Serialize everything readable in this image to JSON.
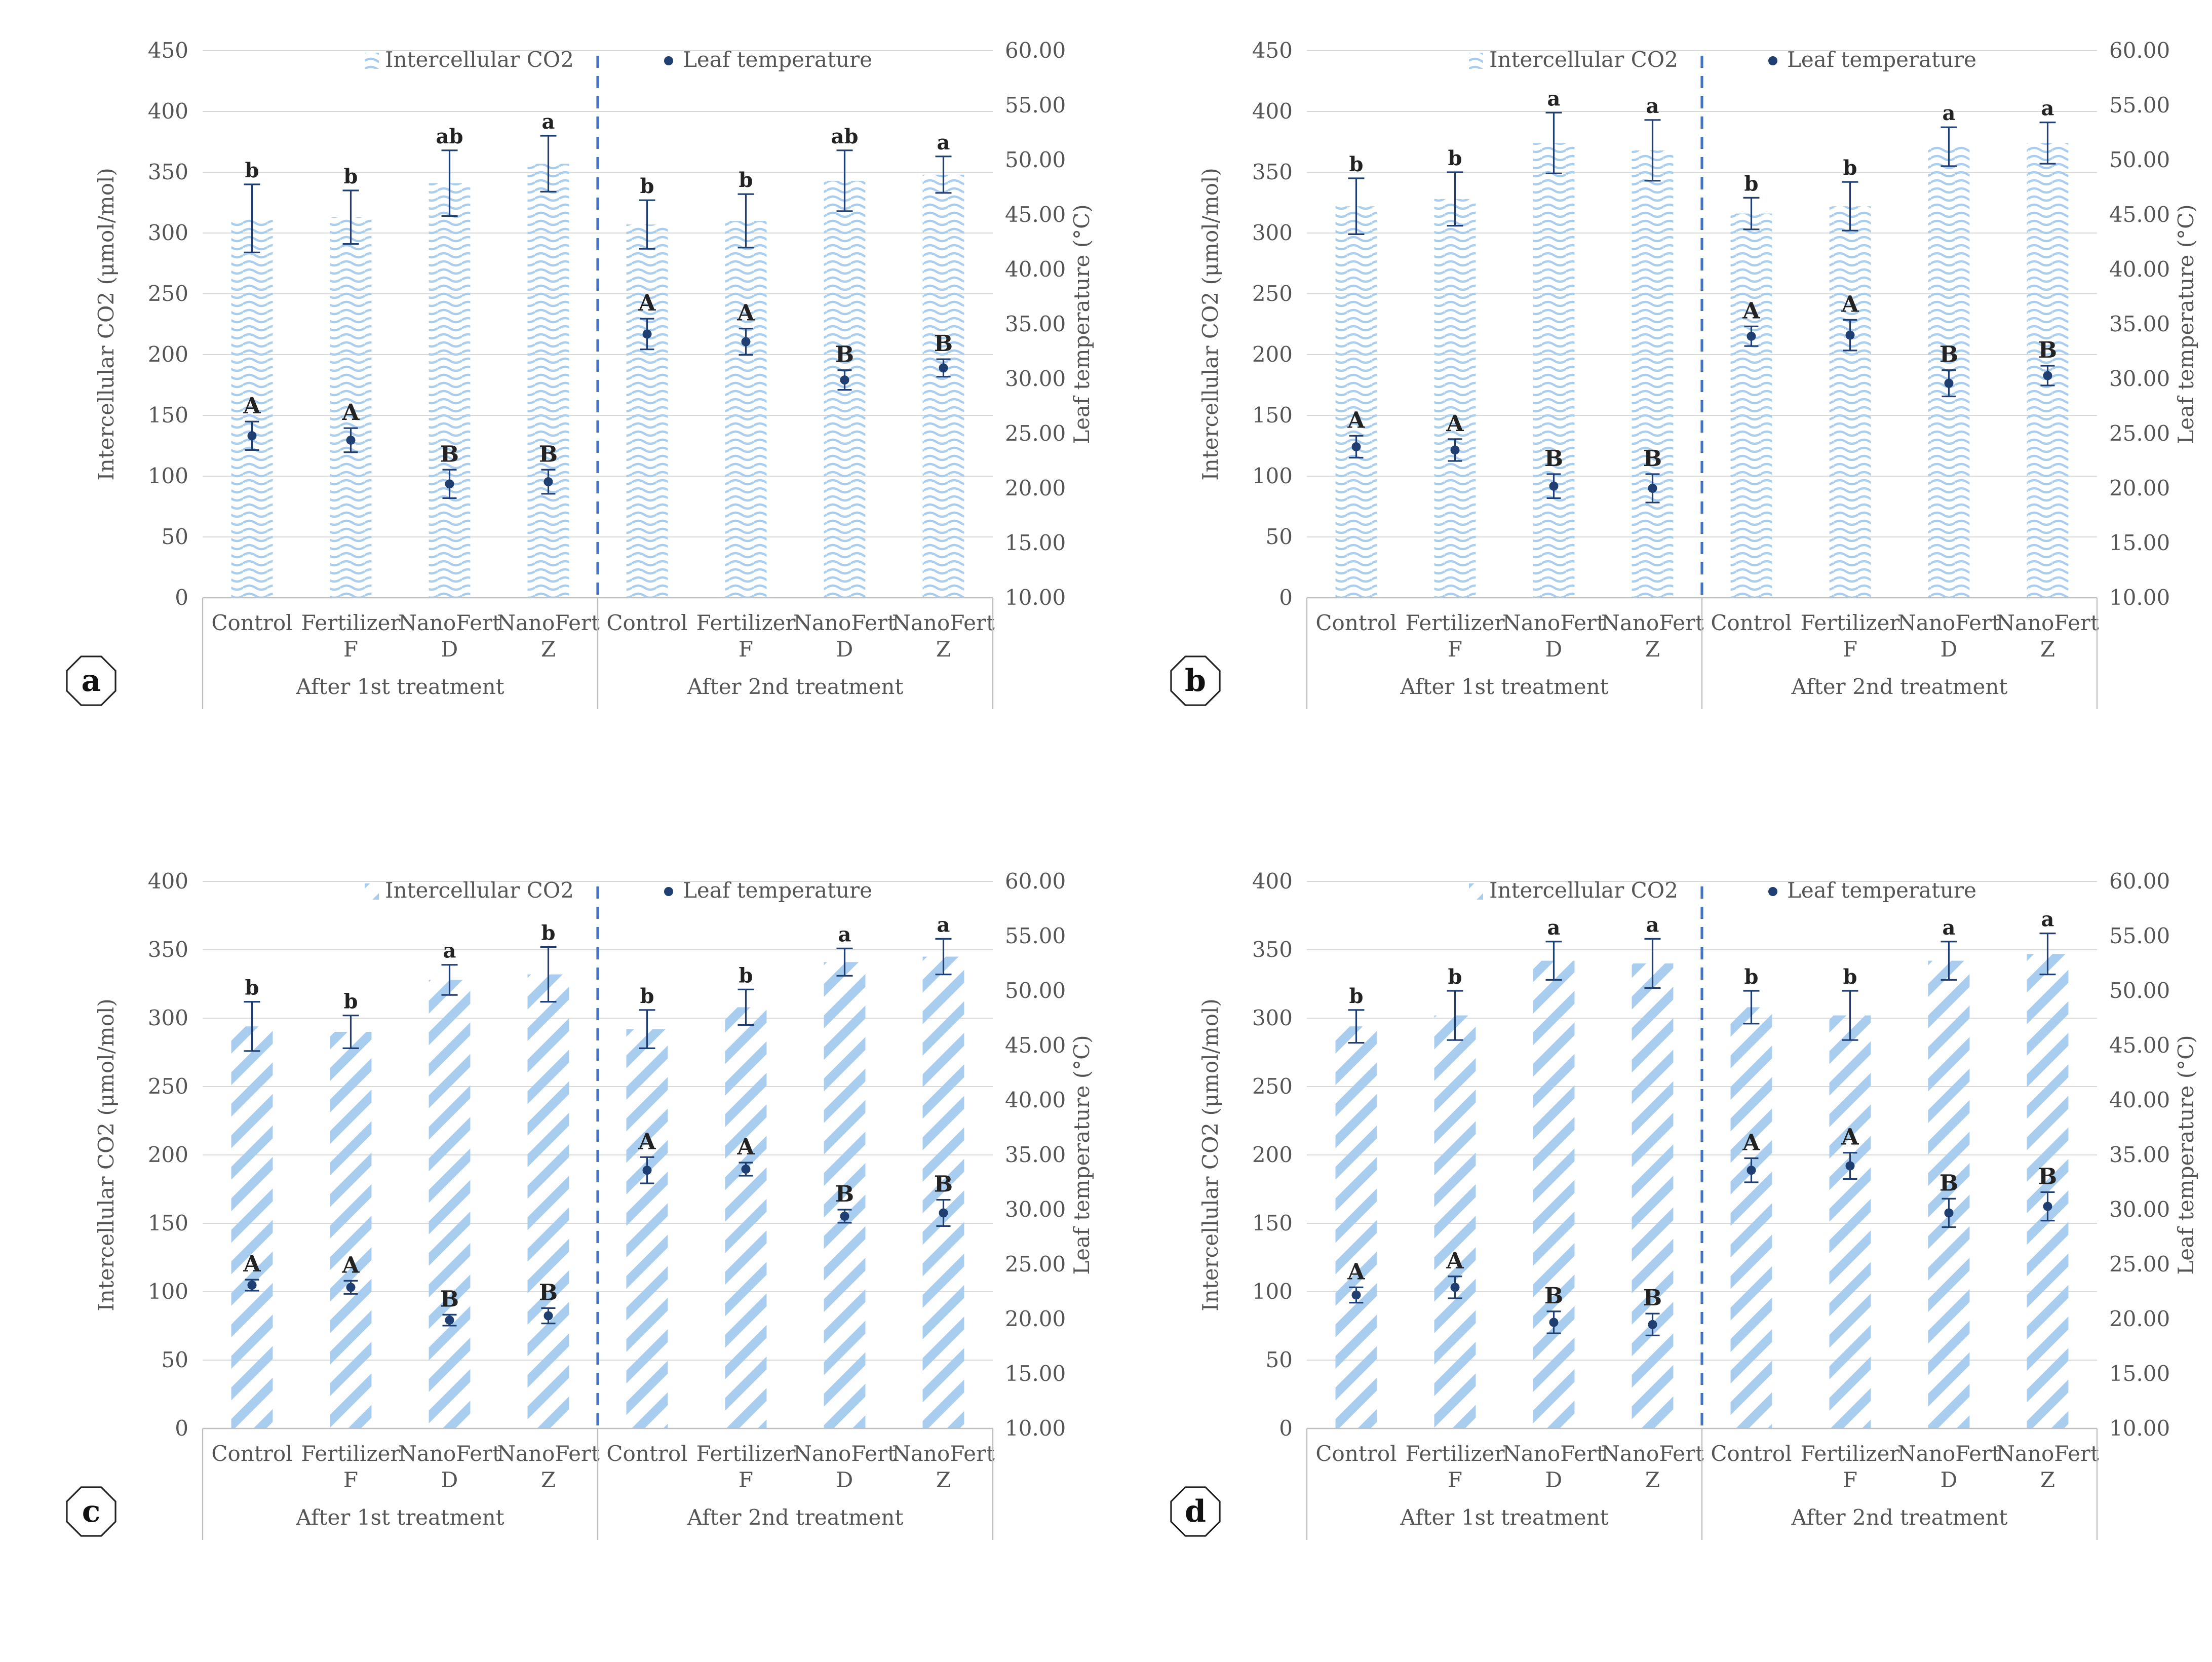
{
  "chart_data": [
    {
      "type": "bar",
      "panel_label": "a",
      "bar_pattern": "wavy",
      "groups": [
        "After 1st treatment",
        "After 2nd treatment"
      ],
      "categories": [
        [
          "Control",
          ""
        ],
        [
          "Fertilizer",
          "F"
        ],
        [
          "NanoFert",
          "D"
        ],
        [
          "NanoFert",
          "Z"
        ],
        [
          "Control",
          ""
        ],
        [
          "Fertilizer",
          "F"
        ],
        [
          "NanoFert",
          "D"
        ],
        [
          "NanoFert",
          "Z"
        ]
      ],
      "ylabel": "Intercellular CO2 (μmol/mol)",
      "y2label": "Leaf temperature (°C)",
      "ylim": [
        0,
        450
      ],
      "y2lim": [
        10,
        60
      ],
      "yticks": [
        "0",
        "50",
        "100",
        "150",
        "200",
        "250",
        "300",
        "350",
        "400",
        "450"
      ],
      "y2ticks": [
        "10.00",
        "15.00",
        "20.00",
        "25.00",
        "30.00",
        "35.00",
        "40.00",
        "45.00",
        "50.00",
        "55.00",
        "60.00"
      ],
      "legend": {
        "bar": "Intercellular CO2",
        "point": "Leaf temperature"
      },
      "series": [
        {
          "name": "Intercellular CO2",
          "values": [
            312,
            313,
            341,
            357,
            307,
            310,
            343,
            348
          ],
          "err": [
            28,
            22,
            27,
            23,
            20,
            22,
            25,
            15
          ],
          "letters": [
            "b",
            "b",
            "ab",
            "a",
            "b",
            "b",
            "ab",
            "a"
          ]
        },
        {
          "name": "Leaf temperature",
          "values": [
            24.8,
            24.4,
            20.4,
            20.6,
            34.1,
            33.4,
            29.9,
            31.0
          ],
          "err": [
            1.3,
            1.1,
            1.3,
            1.1,
            1.4,
            1.2,
            0.9,
            0.8
          ],
          "letters": [
            "A",
            "A",
            "B",
            "B",
            "A",
            "A",
            "B",
            "B"
          ]
        }
      ],
      "grid": true
    },
    {
      "type": "bar",
      "panel_label": "b",
      "bar_pattern": "wavy",
      "groups": [
        "After 1st treatment",
        "After 2nd treatment"
      ],
      "categories": [
        [
          "Control",
          ""
        ],
        [
          "Fertilizer",
          "F"
        ],
        [
          "NanoFert",
          "D"
        ],
        [
          "NanoFert",
          "Z"
        ],
        [
          "Control",
          ""
        ],
        [
          "Fertilizer",
          "F"
        ],
        [
          "NanoFert",
          "D"
        ],
        [
          "NanoFert",
          "Z"
        ]
      ],
      "ylabel": "Intercellular CO2 (μmol/mol)",
      "y2label": "Leaf temperature (°C)",
      "ylim": [
        0,
        450
      ],
      "y2lim": [
        10,
        60
      ],
      "yticks": [
        "0",
        "50",
        "100",
        "150",
        "200",
        "250",
        "300",
        "350",
        "400",
        "450"
      ],
      "y2ticks": [
        "10.00",
        "15.00",
        "20.00",
        "25.00",
        "30.00",
        "35.00",
        "40.00",
        "45.00",
        "50.00",
        "55.00",
        "60.00"
      ],
      "legend": {
        "bar": "Intercellular CO2",
        "point": "Leaf temperature"
      },
      "series": [
        {
          "name": "Intercellular CO2",
          "values": [
            322,
            328,
            374,
            368,
            316,
            322,
            371,
            374
          ],
          "err": [
            23,
            22,
            25,
            25,
            13,
            20,
            16,
            17
          ],
          "letters": [
            "b",
            "b",
            "a",
            "a",
            "b",
            "b",
            "a",
            "a"
          ]
        },
        {
          "name": "Leaf temperature",
          "values": [
            23.8,
            23.5,
            20.2,
            20.0,
            33.9,
            34.0,
            29.6,
            30.3
          ],
          "err": [
            1.0,
            1.0,
            1.1,
            1.3,
            0.9,
            1.4,
            1.2,
            0.9
          ],
          "letters": [
            "A",
            "A",
            "B",
            "B",
            "A",
            "A",
            "B",
            "B"
          ]
        }
      ],
      "grid": true
    },
    {
      "type": "bar",
      "panel_label": "c",
      "bar_pattern": "diagonal",
      "groups": [
        "After 1st treatment",
        "After 2nd treatment"
      ],
      "categories": [
        [
          "Control",
          ""
        ],
        [
          "Fertilizer",
          "F"
        ],
        [
          "NanoFert",
          "D"
        ],
        [
          "NanoFert",
          "Z"
        ],
        [
          "Control",
          ""
        ],
        [
          "Fertilizer",
          "F"
        ],
        [
          "NanoFert",
          "D"
        ],
        [
          "NanoFert",
          "Z"
        ]
      ],
      "ylabel": "Intercellular CO2 (μmol/mol)",
      "y2label": "Leaf temperature (°C)",
      "ylim": [
        0,
        400
      ],
      "y2lim": [
        10,
        60
      ],
      "yticks": [
        "0",
        "50",
        "100",
        "150",
        "200",
        "250",
        "300",
        "350",
        "400"
      ],
      "y2ticks": [
        "10.00",
        "15.00",
        "20.00",
        "25.00",
        "30.00",
        "35.00",
        "40.00",
        "45.00",
        "50.00",
        "55.00",
        "60.00"
      ],
      "legend": {
        "bar": "Intercellular CO2",
        "point": "Leaf temperature"
      },
      "series": [
        {
          "name": "Intercellular CO2",
          "values": [
            294,
            290,
            328,
            332,
            292,
            308,
            341,
            345
          ],
          "err": [
            18,
            12,
            11,
            20,
            14,
            13,
            10,
            13
          ],
          "letters": [
            "b",
            "b",
            "a",
            "b",
            "b",
            "b",
            "a",
            "a"
          ]
        },
        {
          "name": "Leaf temperature",
          "values": [
            23.1,
            22.9,
            19.9,
            20.3,
            33.6,
            33.7,
            29.4,
            29.7
          ],
          "err": [
            0.5,
            0.6,
            0.5,
            0.7,
            1.2,
            0.6,
            0.6,
            1.2
          ],
          "letters": [
            "A",
            "A",
            "B",
            "B",
            "A",
            "A",
            "B",
            "B"
          ]
        }
      ],
      "grid": true
    },
    {
      "type": "bar",
      "panel_label": "d",
      "bar_pattern": "diagonal",
      "groups": [
        "After 1st treatment",
        "After 2nd treatment"
      ],
      "categories": [
        [
          "Control",
          ""
        ],
        [
          "Fertilizer",
          "F"
        ],
        [
          "NanoFert",
          "D"
        ],
        [
          "NanoFert",
          "Z"
        ],
        [
          "Control",
          ""
        ],
        [
          "Fertilizer",
          "F"
        ],
        [
          "NanoFert",
          "D"
        ],
        [
          "NanoFert",
          "Z"
        ]
      ],
      "ylabel": "Intercellular CO2 (μmol/mol)",
      "y2label": "Leaf temperature (°C)",
      "ylim": [
        0,
        400
      ],
      "y2lim": [
        10,
        60
      ],
      "yticks": [
        "0",
        "50",
        "100",
        "150",
        "200",
        "250",
        "300",
        "350",
        "400"
      ],
      "y2ticks": [
        "10.00",
        "15.00",
        "20.00",
        "25.00",
        "30.00",
        "35.00",
        "40.00",
        "45.00",
        "50.00",
        "55.00",
        "60.00"
      ],
      "legend": {
        "bar": "Intercellular CO2",
        "point": "Leaf temperature"
      },
      "series": [
        {
          "name": "Intercellular CO2",
          "values": [
            294,
            302,
            342,
            340,
            308,
            302,
            342,
            347
          ],
          "err": [
            12,
            18,
            14,
            18,
            12,
            18,
            14,
            15
          ],
          "letters": [
            "b",
            "b",
            "a",
            "a",
            "b",
            "b",
            "a",
            "a"
          ]
        },
        {
          "name": "Leaf temperature",
          "values": [
            22.2,
            22.9,
            19.7,
            19.5,
            33.6,
            34.0,
            29.7,
            30.3
          ],
          "err": [
            0.7,
            1.0,
            1.0,
            1.0,
            1.1,
            1.2,
            1.3,
            1.3
          ],
          "letters": [
            "A",
            "A",
            "B",
            "B",
            "A",
            "A",
            "B",
            "B"
          ]
        }
      ],
      "grid": true
    }
  ],
  "colors": {
    "bar_pattern": "#a9cdef",
    "point": "#1f3f73",
    "error": "#1f3f73",
    "divider": "#4472c4",
    "grid": "#d9d9d9",
    "axis": "#bfbfbf",
    "text": "#555555"
  }
}
